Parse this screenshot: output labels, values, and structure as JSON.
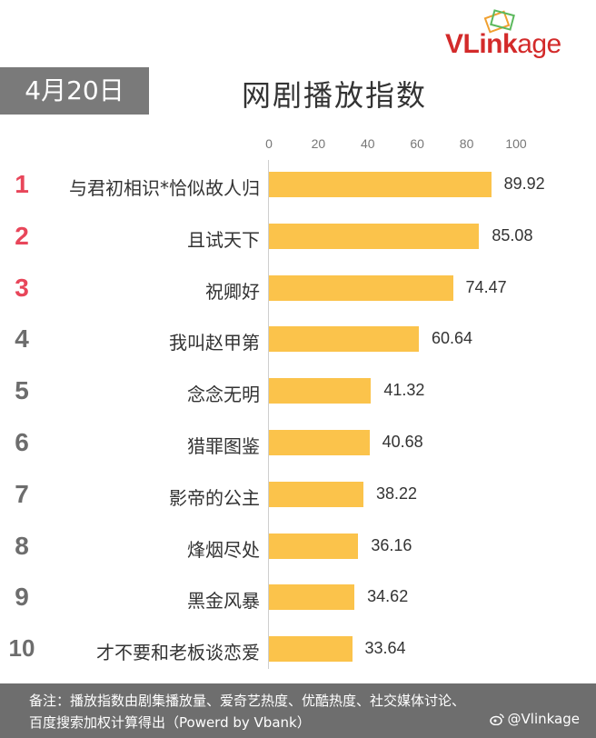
{
  "brand": {
    "logo_text_1": "VLink",
    "logo_text_2": "age",
    "brand_color": "#d32a2a"
  },
  "header": {
    "date": "4月20日",
    "title": "网剧播放指数"
  },
  "footer": {
    "note_line1": "备注：播放指数由剧集播放量、爱奇艺热度、优酷热度、社交媒体讨论、",
    "note_line2": "百度搜索加权计算得出（Powerd by Vbank）",
    "weibo_handle": "@Vlinkage"
  },
  "colors": {
    "bar": "#fbc34b",
    "top_rank": "#e8465a",
    "rank": "#6d6d6d",
    "date_bg": "#7a7a7a",
    "footer_bg": "#6e6e6e"
  },
  "chart_data": {
    "type": "bar",
    "orientation": "horizontal",
    "title": "网剧播放指数",
    "subtitle": "4月20日",
    "xlabel": "",
    "ylabel": "",
    "xlim": [
      0,
      100
    ],
    "xticks": [
      0,
      20,
      40,
      60,
      80,
      100
    ],
    "grid": false,
    "legend": null,
    "categories": [
      "与君初相识*恰似故人归",
      "且试天下",
      "祝卿好",
      "我叫赵甲第",
      "念念无明",
      "猎罪图鉴",
      "影帝的公主",
      "烽烟尽处",
      "黑金风暴",
      "才不要和老板谈恋爱"
    ],
    "ranks": [
      "1",
      "2",
      "3",
      "4",
      "5",
      "6",
      "7",
      "8",
      "9",
      "10"
    ],
    "values": [
      89.92,
      85.08,
      74.47,
      60.64,
      41.32,
      40.68,
      38.22,
      36.16,
      34.62,
      33.64
    ],
    "value_labels": [
      "89.92",
      "85.08",
      "74.47",
      "60.64",
      "41.32",
      "40.68",
      "38.22",
      "36.16",
      "34.62",
      "33.64"
    ]
  }
}
